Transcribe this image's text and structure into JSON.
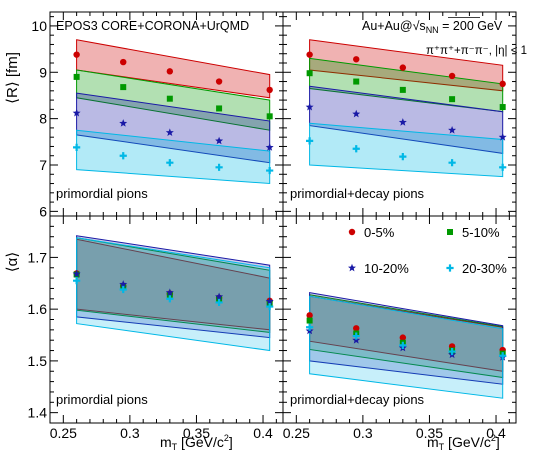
{
  "labels": {
    "model": "EPOS3 CORE+CORONA+UrQMD",
    "system": "Au+Au@√s",
    "sub_nn": "NN",
    "energy": " = 200 GeV",
    "particles": "π⁺π⁺+π⁻π⁻, |η| < 1",
    "panel_tl": "primordial pions",
    "panel_tr": "primordial+decay pions",
    "panel_bl": "primordial pions",
    "panel_br": "primordial+decay pions",
    "ylabel_top": "⟨R⟩ [fm]",
    "ylabel_bottom": "⟨α⟩",
    "xlabel": "m",
    "xlabel_sub": "T",
    "xlabel_units": " [GeV/c",
    "xlabel_sup": "2",
    "xlabel_close": "]"
  },
  "colors": {
    "0-5%": "#cc0000",
    "5-10%": "#009900",
    "10-20%": "#1a1aa6",
    "20-30%": "#00b8e6"
  },
  "chart_data": {
    "type": "scatter",
    "x": [
      0.26,
      0.295,
      0.33,
      0.367,
      0.405
    ],
    "xlim": [
      0.24,
      0.415
    ],
    "xticks": [
      0.25,
      0.3,
      0.35,
      0.4
    ],
    "ylim_R": [
      5.9,
      10.3
    ],
    "yticks_R": [
      6,
      7,
      8,
      9,
      10
    ],
    "ylim_alpha": [
      1.38,
      1.78
    ],
    "yticks_alpha": [
      1.4,
      1.5,
      1.6,
      1.7
    ],
    "legend": [
      {
        "name": "0-5%",
        "marker": "circle"
      },
      {
        "name": "5-10%",
        "marker": "square"
      },
      {
        "name": "10-20%",
        "marker": "star"
      },
      {
        "name": "20-30%",
        "marker": "cross"
      }
    ],
    "panels": [
      {
        "id": "tl",
        "quantity": "R",
        "series": [
          {
            "name": "0-5%",
            "points": [
              9.38,
              9.22,
              9.02,
              8.8,
              8.62
            ],
            "band": {
              "x": [
                0.26,
                0.405
              ],
              "low": [
                9.05,
                8.45
              ],
              "high": [
                9.7,
                8.95
              ]
            }
          },
          {
            "name": "5-10%",
            "points": [
              8.9,
              8.68,
              8.43,
              8.22,
              8.05
            ],
            "band": {
              "x": [
                0.26,
                0.405
              ],
              "low": [
                8.45,
                7.75
              ],
              "high": [
                9.05,
                8.4
              ]
            }
          },
          {
            "name": "10-20%",
            "points": [
              8.12,
              7.9,
              7.7,
              7.52,
              7.38
            ],
            "band": {
              "x": [
                0.26,
                0.405
              ],
              "low": [
                7.65,
                7.05
              ],
              "high": [
                8.55,
                7.95
              ]
            }
          },
          {
            "name": "20-30%",
            "points": [
              7.38,
              7.2,
              7.05,
              6.95,
              6.88
            ],
            "band": {
              "x": [
                0.26,
                0.405
              ],
              "low": [
                6.9,
                6.6
              ],
              "high": [
                7.75,
                7.3
              ]
            }
          }
        ]
      },
      {
        "id": "tr",
        "quantity": "R",
        "series": [
          {
            "name": "0-5%",
            "points": [
              9.38,
              9.28,
              9.1,
              8.92,
              8.75
            ],
            "band": {
              "x": [
                0.26,
                0.405
              ],
              "low": [
                9.05,
                8.6
              ],
              "high": [
                9.7,
                9.15
              ]
            }
          },
          {
            "name": "5-10%",
            "points": [
              8.98,
              8.8,
              8.62,
              8.42,
              8.25
            ],
            "band": {
              "x": [
                0.26,
                0.405
              ],
              "low": [
                8.65,
                8.15
              ],
              "high": [
                9.3,
                8.75
              ]
            }
          },
          {
            "name": "10-20%",
            "points": [
              8.25,
              8.1,
              7.92,
              7.75,
              7.6
            ],
            "band": {
              "x": [
                0.26,
                0.405
              ],
              "low": [
                7.85,
                7.25
              ],
              "high": [
                8.7,
                8.15
              ]
            }
          },
          {
            "name": "20-30%",
            "points": [
              7.52,
              7.35,
              7.18,
              7.05,
              6.95
            ],
            "band": {
              "x": [
                0.26,
                0.405
              ],
              "low": [
                7.0,
                6.75
              ],
              "high": [
                7.9,
                7.55
              ]
            }
          }
        ]
      },
      {
        "id": "bl",
        "quantity": "alpha",
        "series": [
          {
            "name": "0-5%",
            "points": [
              1.669,
              1.645,
              1.63,
              1.622,
              1.616
            ],
            "band": {
              "x": [
                0.26,
                0.405
              ],
              "low": [
                1.6,
                1.56
              ],
              "high": [
                1.735,
                1.66
              ]
            }
          },
          {
            "name": "5-10%",
            "points": [
              1.667,
              1.642,
              1.628,
              1.62,
              1.612
            ],
            "band": {
              "x": [
                0.26,
                0.405
              ],
              "low": [
                1.598,
                1.555
              ],
              "high": [
                1.738,
                1.675
              ]
            }
          },
          {
            "name": "10-20%",
            "points": [
              1.668,
              1.648,
              1.632,
              1.624,
              1.615
            ],
            "band": {
              "x": [
                0.26,
                0.405
              ],
              "low": [
                1.585,
                1.545
              ],
              "high": [
                1.742,
                1.685
              ]
            }
          },
          {
            "name": "20-30%",
            "points": [
              1.655,
              1.638,
              1.62,
              1.613,
              1.605
            ],
            "band": {
              "x": [
                0.26,
                0.405
              ],
              "low": [
                1.572,
                1.52
              ],
              "high": [
                1.738,
                1.68
              ]
            }
          }
        ]
      },
      {
        "id": "br",
        "quantity": "alpha",
        "series": [
          {
            "name": "0-5%",
            "points": [
              1.588,
              1.563,
              1.545,
              1.528,
              1.521
            ],
            "band": {
              "x": [
                0.26,
                0.405
              ],
              "low": [
                1.538,
                1.48
              ],
              "high": [
                1.625,
                1.565
              ]
            }
          },
          {
            "name": "5-10%",
            "points": [
              1.578,
              1.553,
              1.535,
              1.52,
              1.514
            ],
            "band": {
              "x": [
                0.26,
                0.405
              ],
              "low": [
                1.522,
                1.468
              ],
              "high": [
                1.628,
                1.566
              ]
            }
          },
          {
            "name": "10-20%",
            "points": [
              1.558,
              1.54,
              1.525,
              1.512,
              1.507
            ],
            "band": {
              "x": [
                0.26,
                0.405
              ],
              "low": [
                1.5,
                1.455
              ],
              "high": [
                1.632,
                1.568
              ]
            }
          },
          {
            "name": "20-30%",
            "points": [
              1.565,
              1.548,
              1.53,
              1.518,
              1.51
            ],
            "band": {
              "x": [
                0.26,
                0.405
              ],
              "low": [
                1.475,
                1.428
              ],
              "high": [
                1.625,
                1.562
              ]
            }
          }
        ]
      }
    ]
  }
}
